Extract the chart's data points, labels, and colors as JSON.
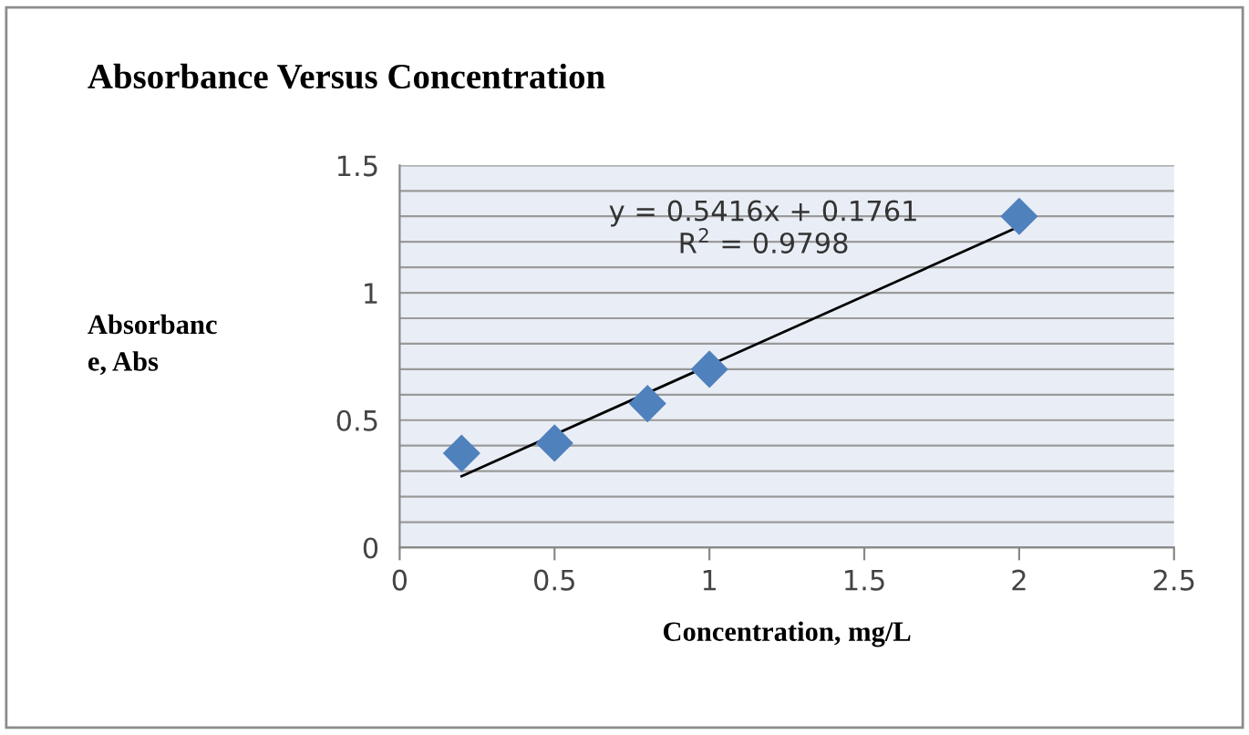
{
  "chart_data": {
    "type": "scatter",
    "title": "Absorbance Versus Concentration",
    "xlabel": "Concentration, mg/L",
    "ylabel": "Absorbanc\ne, Abs",
    "x": [
      0.2,
      0.5,
      0.8,
      1,
      2
    ],
    "series": [
      {
        "color": "#4f81bd",
        "marker": "diamond",
        "values": [
          0.37,
          0.41,
          0.565,
          0.7,
          1.3
        ]
      },
      {
        "type": "line",
        "color": "#000000",
        "marker": "none",
        "x": [
          0.2,
          2
        ],
        "values": [
          0.28,
          1.26
        ]
      }
    ],
    "annotations": [
      "y = 0.5416x + 0.1761",
      "R$^{2}$ = 0.9798"
    ],
    "xlim": [
      0,
      2.5
    ],
    "xticks": [
      0,
      0.5,
      1,
      1.5,
      2,
      2.5
    ],
    "ylim": [
      0,
      1.5
    ],
    "yticks": [
      0,
      {
        "value": 0.1,
        "label": null
      },
      {
        "value": 0.2,
        "label": null
      },
      {
        "value": 0.3,
        "label": null
      },
      {
        "value": 0.4,
        "label": null
      },
      0.5,
      {
        "value": 0.6,
        "label": null
      },
      {
        "value": 0.7,
        "label": null
      },
      {
        "value": 0.8,
        "label": null
      },
      {
        "value": 0.9,
        "label": null
      },
      1,
      {
        "value": 1.1,
        "label": null
      },
      {
        "value": 1.2,
        "label": null
      },
      {
        "value": 1.3,
        "label": null
      },
      {
        "value": 1.4,
        "label": null
      },
      1.5
    ],
    "grid": "y",
    "legend": false
  }
}
